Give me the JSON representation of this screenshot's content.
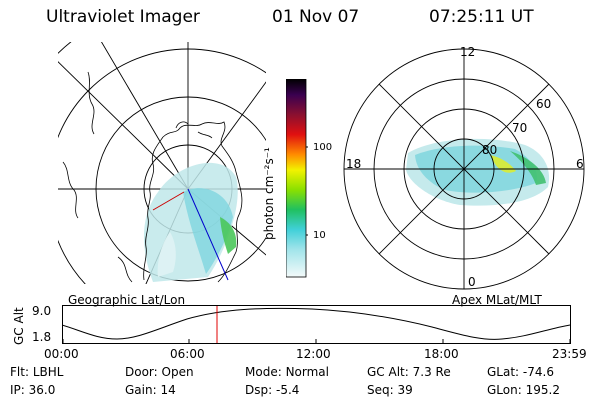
{
  "header": {
    "instrument": "Ultraviolet Imager",
    "date": "01 Nov 07",
    "time": "07:25:11 UT"
  },
  "colorbar": {
    "unit_label": "photon cm⁻²s⁻¹",
    "ticks": [
      "100",
      "10"
    ]
  },
  "left_panel": {
    "caption": "Geographic Lat/Lon"
  },
  "right_panel": {
    "caption": "Apex MLat/MLT",
    "mlt_labels": [
      "12",
      "18",
      "6",
      "0"
    ],
    "lat_labels": [
      "60",
      "70",
      "80"
    ]
  },
  "timeline": {
    "ylabel": "GC Alt",
    "y_ticks": [
      "9.0",
      "1.8"
    ],
    "x_ticks": [
      "00:00",
      "06:00",
      "12:00",
      "18:00",
      "23:59"
    ]
  },
  "footer": {
    "row1": [
      {
        "label": "Flt:",
        "value": "LBHL"
      },
      {
        "label": "Door:",
        "value": "Open"
      },
      {
        "label": "Mode:",
        "value": "Normal"
      },
      {
        "label": "GC Alt:",
        "value": "7.3 Re"
      },
      {
        "label": "GLat:",
        "value": "-74.6"
      }
    ],
    "row2": [
      {
        "label": "IP:",
        "value": "36.0"
      },
      {
        "label": "Gain:",
        "value": "14"
      },
      {
        "label": "Dsp:",
        "value": "-5.4"
      },
      {
        "label": "Seq:",
        "value": "39"
      },
      {
        "label": "GLon:",
        "value": "195.2"
      }
    ]
  }
}
